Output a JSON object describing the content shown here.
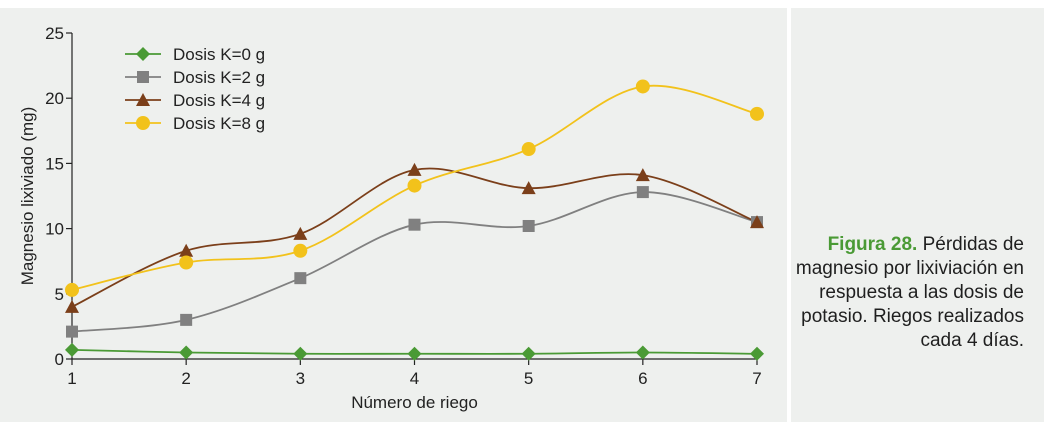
{
  "chart_data": {
    "type": "line",
    "title": "",
    "xlabel": "Número de riego",
    "ylabel": "Magnesio lixiviado (mg)",
    "x": [
      1,
      2,
      3,
      4,
      5,
      6,
      7
    ],
    "xlim": [
      1,
      7
    ],
    "ylim": [
      0,
      25
    ],
    "yticks": [
      0,
      5,
      10,
      15,
      20,
      25
    ],
    "grid": false,
    "legend_position": "top-left",
    "series": [
      {
        "name": "Dosis K=0 g",
        "values": [
          0.7,
          0.5,
          0.4,
          0.4,
          0.4,
          0.5,
          0.4
        ],
        "color": "#4a9a35",
        "marker": "diamond"
      },
      {
        "name": "Dosis K=2 g",
        "values": [
          2.1,
          3.0,
          6.2,
          10.3,
          10.2,
          12.8,
          10.5
        ],
        "color": "#808080",
        "marker": "square"
      },
      {
        "name": "Dosis K=4 g",
        "values": [
          4.0,
          8.3,
          9.6,
          14.5,
          13.1,
          14.1,
          10.5
        ],
        "color": "#7b3f1a",
        "marker": "triangle"
      },
      {
        "name": "Dosis K=8 g",
        "values": [
          5.3,
          7.4,
          8.3,
          13.3,
          16.1,
          20.9,
          18.8
        ],
        "color": "#f2c21b",
        "marker": "circle"
      }
    ]
  },
  "caption": {
    "figure_label": "Figura 28.",
    "text": "Pérdidas de magnesio por lixiviación en respuesta a las dosis de potasio. Riegos realizados cada 4 días."
  }
}
